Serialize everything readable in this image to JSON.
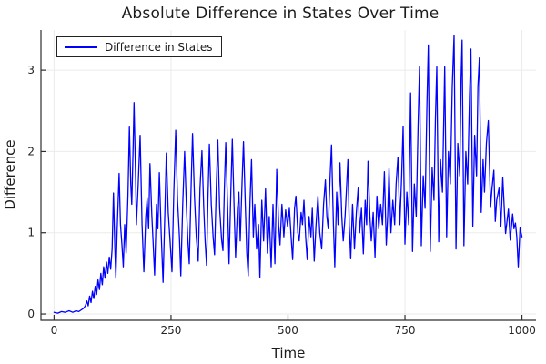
{
  "chart_data": {
    "type": "line",
    "title": "Absolute Difference in States Over Time",
    "xlabel": "Time",
    "ylabel": "Difference",
    "xlim": [
      -28,
      1030
    ],
    "ylim": [
      -0.078,
      3.494
    ],
    "xticks": [
      0,
      250,
      500,
      750,
      1000
    ],
    "yticks": [
      0,
      1,
      2,
      3
    ],
    "grid": true,
    "legend_position": "top-left",
    "colors": {
      "series": "#0000ff",
      "grid": "#ebebeb",
      "axis": "#2f2f2f",
      "tick_text": "#262626",
      "title_text": "#1c1c1c",
      "background": "#ffffff",
      "legend_border": "#222222"
    },
    "series": [
      {
        "name": "Difference in States",
        "color": "#0000ff",
        "points": [
          [
            0,
            0.02
          ],
          [
            8,
            0.01
          ],
          [
            16,
            0.03
          ],
          [
            24,
            0.02
          ],
          [
            32,
            0.04
          ],
          [
            40,
            0.02
          ],
          [
            47,
            0.04
          ],
          [
            53,
            0.03
          ],
          [
            58,
            0.05
          ],
          [
            63,
            0.07
          ],
          [
            67,
            0.1
          ],
          [
            70,
            0.16
          ],
          [
            73,
            0.1
          ],
          [
            76,
            0.22
          ],
          [
            79,
            0.14
          ],
          [
            82,
            0.28
          ],
          [
            85,
            0.19
          ],
          [
            88,
            0.34
          ],
          [
            91,
            0.24
          ],
          [
            94,
            0.42
          ],
          [
            97,
            0.3
          ],
          [
            100,
            0.5
          ],
          [
            103,
            0.36
          ],
          [
            106,
            0.58
          ],
          [
            109,
            0.44
          ],
          [
            112,
            0.64
          ],
          [
            115,
            0.5
          ],
          [
            118,
            0.7
          ],
          [
            121,
            0.55
          ],
          [
            124,
            0.8
          ],
          [
            127,
            1.49
          ],
          [
            130,
            0.82
          ],
          [
            132,
            0.44
          ],
          [
            135,
            1.05
          ],
          [
            139,
            1.73
          ],
          [
            142,
            1.1
          ],
          [
            145,
            0.85
          ],
          [
            148,
            0.58
          ],
          [
            151,
            1.1
          ],
          [
            154,
            0.75
          ],
          [
            158,
            1.45
          ],
          [
            161,
            2.3
          ],
          [
            164,
            1.6
          ],
          [
            166,
            1.35
          ],
          [
            169,
            2.05
          ],
          [
            171,
            2.6
          ],
          [
            174,
            1.75
          ],
          [
            176,
            1.1
          ],
          [
            180,
            1.6
          ],
          [
            184,
            2.2
          ],
          [
            188,
            1.1
          ],
          [
            192,
            0.52
          ],
          [
            196,
            1.2
          ],
          [
            199,
            1.42
          ],
          [
            202,
            1.05
          ],
          [
            205,
            1.85
          ],
          [
            209,
            1.2
          ],
          [
            212,
            0.85
          ],
          [
            215,
            0.48
          ],
          [
            219,
            1.35
          ],
          [
            222,
            1.05
          ],
          [
            225,
            1.74
          ],
          [
            229,
            1.0
          ],
          [
            233,
            0.39
          ],
          [
            237,
            1.3
          ],
          [
            240,
            1.98
          ],
          [
            244,
            1.25
          ],
          [
            248,
            0.9
          ],
          [
            252,
            0.52
          ],
          [
            256,
            1.5
          ],
          [
            260,
            2.26
          ],
          [
            264,
            1.4
          ],
          [
            268,
            0.95
          ],
          [
            271,
            0.47
          ],
          [
            275,
            1.35
          ],
          [
            279,
            2.0
          ],
          [
            283,
            1.3
          ],
          [
            286,
            0.9
          ],
          [
            289,
            0.62
          ],
          [
            293,
            1.6
          ],
          [
            296,
            2.22
          ],
          [
            300,
            1.45
          ],
          [
            304,
            0.95
          ],
          [
            308,
            0.65
          ],
          [
            312,
            1.55
          ],
          [
            316,
            2.01
          ],
          [
            320,
            1.3
          ],
          [
            323,
            0.88
          ],
          [
            326,
            0.6
          ],
          [
            329,
            1.45
          ],
          [
            332,
            2.09
          ],
          [
            336,
            1.35
          ],
          [
            340,
            0.95
          ],
          [
            343,
            0.73
          ],
          [
            347,
            1.6
          ],
          [
            350,
            2.14
          ],
          [
            354,
            1.3
          ],
          [
            358,
            0.92
          ],
          [
            361,
            0.78
          ],
          [
            364,
            1.55
          ],
          [
            367,
            2.11
          ],
          [
            371,
            1.3
          ],
          [
            374,
            0.62
          ],
          [
            378,
            1.55
          ],
          [
            381,
            2.15
          ],
          [
            385,
            1.25
          ],
          [
            388,
            0.7
          ],
          [
            392,
            1.3
          ],
          [
            395,
            1.5
          ],
          [
            398,
            0.9
          ],
          [
            402,
            1.65
          ],
          [
            405,
            2.12
          ],
          [
            409,
            1.3
          ],
          [
            412,
            0.75
          ],
          [
            415,
            0.47
          ],
          [
            419,
            1.4
          ],
          [
            422,
            1.9
          ],
          [
            426,
            0.95
          ],
          [
            429,
            1.35
          ],
          [
            433,
            0.8
          ],
          [
            437,
            1.1
          ],
          [
            440,
            0.45
          ],
          [
            444,
            1.4
          ],
          [
            448,
            0.9
          ],
          [
            452,
            1.54
          ],
          [
            456,
            0.75
          ],
          [
            460,
            1.2
          ],
          [
            464,
            0.58
          ],
          [
            468,
            1.35
          ],
          [
            472,
            0.62
          ],
          [
            476,
            1.78
          ],
          [
            480,
            1.1
          ],
          [
            483,
            0.85
          ],
          [
            487,
            1.35
          ],
          [
            491,
            0.95
          ],
          [
            495,
            1.28
          ],
          [
            499,
            1.08
          ],
          [
            503,
            1.3
          ],
          [
            507,
            0.92
          ],
          [
            510,
            0.67
          ],
          [
            514,
            1.3
          ],
          [
            517,
            1.45
          ],
          [
            521,
            1.0
          ],
          [
            524,
            0.9
          ],
          [
            528,
            1.25
          ],
          [
            531,
            1.1
          ],
          [
            534,
            1.4
          ],
          [
            538,
            0.93
          ],
          [
            541,
            0.67
          ],
          [
            545,
            1.2
          ],
          [
            549,
            0.95
          ],
          [
            552,
            1.3
          ],
          [
            556,
            0.65
          ],
          [
            560,
            1.1
          ],
          [
            564,
            1.45
          ],
          [
            568,
            1.0
          ],
          [
            572,
            0.8
          ],
          [
            576,
            1.35
          ],
          [
            580,
            1.65
          ],
          [
            583,
            1.2
          ],
          [
            586,
            1.05
          ],
          [
            590,
            1.7
          ],
          [
            593,
            2.08
          ],
          [
            597,
            1.1
          ],
          [
            600,
            0.58
          ],
          [
            604,
            1.5
          ],
          [
            607,
            1.1
          ],
          [
            611,
            1.86
          ],
          [
            615,
            1.2
          ],
          [
            618,
            0.9
          ],
          [
            622,
            1.2
          ],
          [
            625,
            1.55
          ],
          [
            628,
            1.9
          ],
          [
            631,
            1.1
          ],
          [
            634,
            0.68
          ],
          [
            638,
            1.35
          ],
          [
            642,
            0.8
          ],
          [
            646,
            1.25
          ],
          [
            650,
            1.55
          ],
          [
            653,
            1.0
          ],
          [
            657,
            1.3
          ],
          [
            661,
            0.74
          ],
          [
            665,
            1.4
          ],
          [
            668,
            1.1
          ],
          [
            671,
            1.88
          ],
          [
            675,
            1.2
          ],
          [
            678,
            0.9
          ],
          [
            682,
            1.25
          ],
          [
            686,
            0.7
          ],
          [
            690,
            1.45
          ],
          [
            694,
            1.05
          ],
          [
            698,
            1.35
          ],
          [
            702,
            1.1
          ],
          [
            706,
            1.75
          ],
          [
            710,
            0.85
          ],
          [
            713,
            1.2
          ],
          [
            716,
            1.79
          ],
          [
            720,
            1.0
          ],
          [
            724,
            1.4
          ],
          [
            728,
            1.1
          ],
          [
            731,
            1.6
          ],
          [
            735,
            1.93
          ],
          [
            739,
            1.1
          ],
          [
            743,
            1.7
          ],
          [
            746,
            2.31
          ],
          [
            750,
            0.86
          ],
          [
            754,
            1.5
          ],
          [
            758,
            1.1
          ],
          [
            762,
            2.72
          ],
          [
            766,
            0.77
          ],
          [
            770,
            1.6
          ],
          [
            774,
            1.2
          ],
          [
            778,
            2.3
          ],
          [
            781,
            3.04
          ],
          [
            785,
            0.84
          ],
          [
            789,
            1.7
          ],
          [
            793,
            1.3
          ],
          [
            797,
            2.6
          ],
          [
            800,
            3.31
          ],
          [
            804,
            0.77
          ],
          [
            808,
            1.8
          ],
          [
            812,
            1.4
          ],
          [
            815,
            2.4
          ],
          [
            818,
            3.04
          ],
          [
            822,
            0.89
          ],
          [
            826,
            1.9
          ],
          [
            830,
            1.5
          ],
          [
            835,
            3.04
          ],
          [
            839,
            0.95
          ],
          [
            843,
            2.0
          ],
          [
            847,
            1.6
          ],
          [
            851,
            2.8
          ],
          [
            855,
            3.43
          ],
          [
            859,
            0.8
          ],
          [
            863,
            2.1
          ],
          [
            867,
            1.7
          ],
          [
            870,
            2.9
          ],
          [
            872,
            3.37
          ],
          [
            876,
            0.84
          ],
          [
            880,
            2.0
          ],
          [
            884,
            1.6
          ],
          [
            888,
            2.7
          ],
          [
            891,
            3.26
          ],
          [
            895,
            1.08
          ],
          [
            899,
            2.2
          ],
          [
            903,
            1.7
          ],
          [
            906,
            2.8
          ],
          [
            909,
            3.15
          ],
          [
            913,
            1.25
          ],
          [
            917,
            1.9
          ],
          [
            920,
            1.5
          ],
          [
            924,
            2.1
          ],
          [
            928,
            2.38
          ],
          [
            933,
            1.31
          ],
          [
            936,
            1.55
          ],
          [
            940,
            1.77
          ],
          [
            943,
            1.14
          ],
          [
            946,
            1.4
          ],
          [
            951,
            1.55
          ],
          [
            955,
            1.08
          ],
          [
            959,
            1.68
          ],
          [
            963,
            1.2
          ],
          [
            965,
            0.99
          ],
          [
            971,
            1.29
          ],
          [
            975,
            0.91
          ],
          [
            980,
            1.23
          ],
          [
            983,
            1.05
          ],
          [
            986,
            1.12
          ],
          [
            989,
            0.95
          ],
          [
            992,
            0.58
          ],
          [
            996,
            1.06
          ],
          [
            1000,
            0.95
          ]
        ]
      }
    ]
  }
}
